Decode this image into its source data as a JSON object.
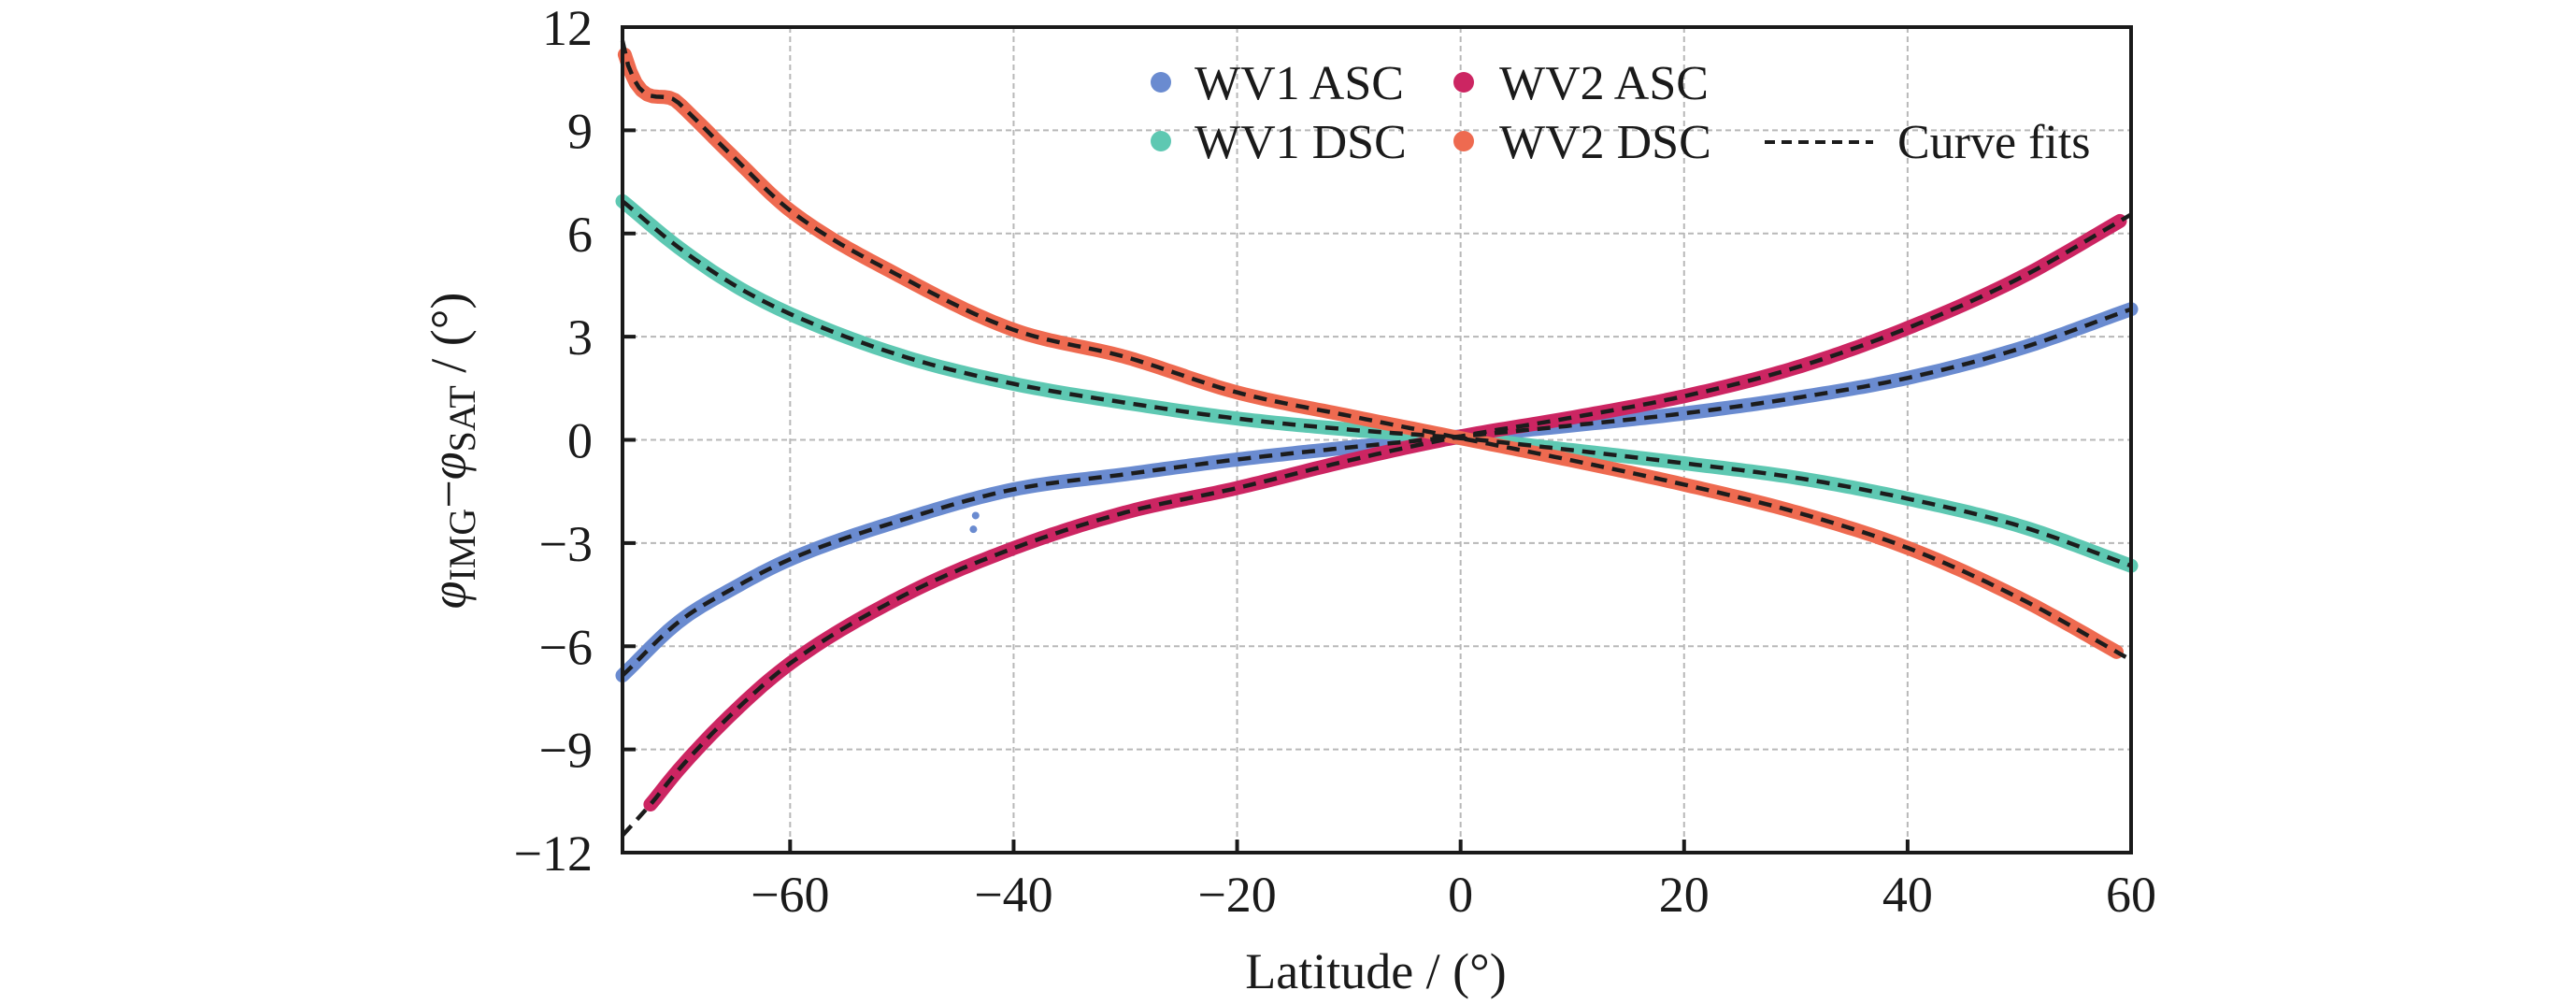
{
  "chart_data": {
    "type": "scatter",
    "title": "",
    "xlabel": "Latitude / (°)",
    "ylabel": {
      "symbol": "φ",
      "sub1": "IMG",
      "minus": "−",
      "sub2": "SAT",
      "unit": " / (°)"
    },
    "xlim": [
      -75,
      60
    ],
    "ylim": [
      -12,
      12
    ],
    "xticks": [
      -60,
      -40,
      -20,
      0,
      20,
      40,
      60
    ],
    "xtick_labels": [
      "−60",
      "−40",
      "−20",
      "0",
      "20",
      "40",
      "60"
    ],
    "yticks": [
      -12,
      -9,
      -6,
      -3,
      0,
      3,
      6,
      9,
      12
    ],
    "ytick_labels": [
      "−12",
      "−9",
      "−6",
      "−3",
      "0",
      "3",
      "6",
      "9",
      "12"
    ],
    "grid": true,
    "legend": {
      "placement": "top-right",
      "fit_label": "Curve fits"
    },
    "series": [
      {
        "name": "WV1 ASC",
        "color": "#6A8BD0",
        "x": [
          -75,
          -70,
          -65,
          -60,
          -50,
          -40,
          -30,
          -20,
          -10,
          0,
          10,
          20,
          30,
          40,
          50,
          60
        ],
        "y": [
          -6.85,
          -5.3,
          -4.3,
          -3.47,
          -2.33,
          -1.44,
          -1.0,
          -0.57,
          -0.22,
          0.1,
          0.42,
          0.77,
          1.22,
          1.8,
          2.65,
          3.8
        ],
        "data_range": [
          -75,
          60
        ],
        "outliers": [
          [
            -43.4,
            -2.2
          ],
          [
            -43.6,
            -2.6
          ]
        ]
      },
      {
        "name": "WV1 DSC",
        "color": "#5EC8B2",
        "x": [
          -75,
          -70,
          -65,
          -60,
          -50,
          -40,
          -30,
          -20,
          -10,
          0,
          10,
          20,
          30,
          40,
          50,
          60
        ],
        "y": [
          6.94,
          5.6,
          4.5,
          3.66,
          2.44,
          1.63,
          1.08,
          0.62,
          0.3,
          0.05,
          -0.3,
          -0.68,
          -1.1,
          -1.71,
          -2.5,
          -3.66
        ],
        "data_range": [
          -75,
          60
        ],
        "outliers": []
      },
      {
        "name": "WV2 ASC",
        "color": "#CC2562",
        "x": [
          -75,
          -72.5,
          -70,
          -65,
          -60,
          -50,
          -40,
          -30,
          -20,
          -10,
          0,
          10,
          20,
          30,
          40,
          50,
          60
        ],
        "y": [
          -11.5,
          -10.6,
          -9.6,
          -7.9,
          -6.5,
          -4.55,
          -3.15,
          -2.11,
          -1.4,
          -0.6,
          0.1,
          0.65,
          1.27,
          2.1,
          3.25,
          4.7,
          6.55
        ],
        "data_range": [
          -72.5,
          59
        ],
        "outliers": []
      },
      {
        "name": "WV2 DSC",
        "color": "#EE6A50",
        "x": [
          -75,
          -74.8,
          -70,
          -65,
          -60,
          -50,
          -40,
          -30,
          -20,
          -10,
          0,
          10,
          20,
          30,
          40,
          50,
          60
        ],
        "y": [
          11.6,
          11.2,
          9.8,
          8.2,
          6.67,
          4.73,
          3.2,
          2.41,
          1.38,
          0.7,
          0.05,
          -0.6,
          -1.3,
          -2.1,
          -3.14,
          -4.6,
          -6.4
        ],
        "data_range": [
          -74.8,
          59
        ],
        "outliers": []
      }
    ]
  }
}
